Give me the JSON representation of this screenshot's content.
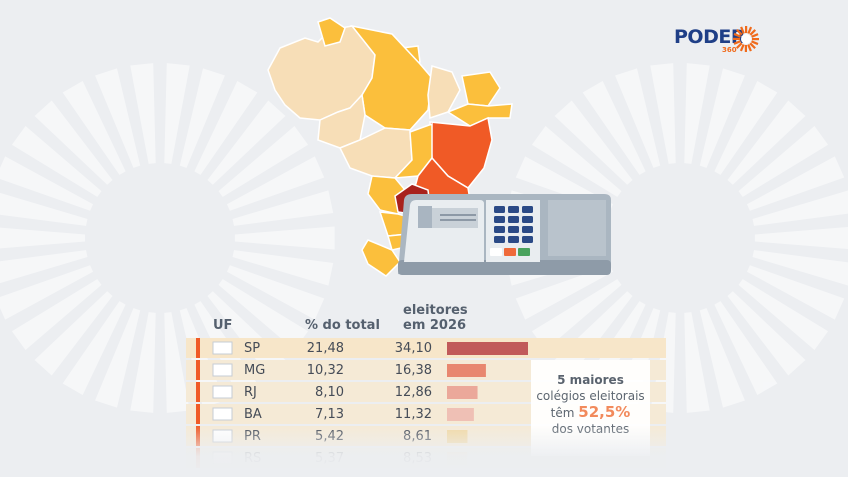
{
  "brand": {
    "name": "PODER",
    "sub": "360"
  },
  "colors": {
    "background": "#eceef1",
    "sp": "#c15a5a",
    "mg": "#e8876f",
    "rj": "#eba89a",
    "ba": "#efc0b5",
    "pr": "#f1d9a6",
    "rs": "#f3e1bd",
    "highlight": "#f28a5c"
  },
  "headers": {
    "uf": "UF",
    "pct": "% do total",
    "voters_line1": "eleitores",
    "voters_line2": "em 2026"
  },
  "chart_data": {
    "type": "table",
    "columns": [
      "UF",
      "% do total",
      "eleitores em 2026"
    ],
    "rows": [
      {
        "uf": "SP",
        "pct": "21,48",
        "voters": "34,10",
        "value": 34.1
      },
      {
        "uf": "MG",
        "pct": "10,32",
        "voters": "16,38",
        "value": 16.38
      },
      {
        "uf": "RJ",
        "pct": "8,10",
        "voters": "12,86",
        "value": 12.86
      },
      {
        "uf": "BA",
        "pct": "7,13",
        "voters": "11,32",
        "value": 11.32
      },
      {
        "uf": "PR",
        "pct": "5,42",
        "voters": "8,61",
        "value": 8.61
      },
      {
        "uf": "RS",
        "pct": "5,37",
        "voters": "8,53",
        "value": 8.53
      }
    ],
    "bar_max": 34.1
  },
  "callout": {
    "line1": "5 maiores",
    "line2": "colégios eleitorais",
    "line3_pre": "têm",
    "line3_value": "52,5%",
    "line4": "dos votantes"
  }
}
